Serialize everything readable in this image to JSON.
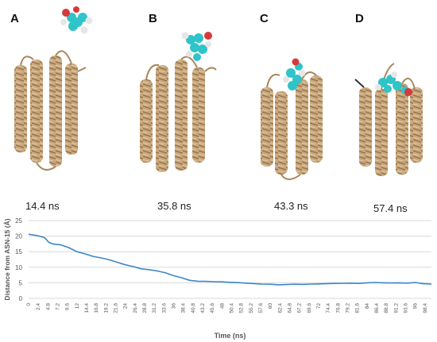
{
  "panels": [
    {
      "letter": "A",
      "time": "14.4 ns"
    },
    {
      "letter": "B",
      "time": "35.8 ns"
    },
    {
      "letter": "C",
      "time": "43.3 ns"
    },
    {
      "letter": "D",
      "time": "57.4 ns"
    }
  ],
  "colors": {
    "helix": "#c9a77c",
    "helix_dark": "#a9865c",
    "ligand_carbon": "#2ec4c9",
    "ligand_oxygen": "#d63a3a",
    "ligand_hydrogen": "#e6e6e6",
    "line": "#3b86c8",
    "grid": "#d9d9d9"
  },
  "chart_data": {
    "type": "line",
    "xlabel": "Time (ns)",
    "ylabel": "Distance from ASN-15 (Å)",
    "ylim": [
      0,
      25
    ],
    "xlim": [
      0,
      100
    ],
    "yticks": [
      "0",
      "5",
      "10",
      "15",
      "20",
      "25"
    ],
    "xticks": [
      "0",
      "2.4",
      "4.8",
      "7.2",
      "9.6",
      "12",
      "14.4",
      "16.8",
      "19.2",
      "21.6",
      "24",
      "26.4",
      "28.8",
      "31.2",
      "33.6",
      "36",
      "38.4",
      "40.8",
      "43.2",
      "45.6",
      "48",
      "50.4",
      "52.8",
      "55.2",
      "57.6",
      "60",
      "62.4",
      "64.8",
      "67.2",
      "69.6",
      "72",
      "74.4",
      "76.8",
      "79.2",
      "81.6",
      "84",
      "86.4",
      "88.8",
      "91.2",
      "93.6",
      "96",
      "98.4"
    ],
    "grid": "horizontal",
    "series": [
      {
        "x": [
          0,
          1,
          2,
          3,
          4,
          5,
          6,
          8,
          10,
          12,
          14,
          16,
          18,
          20,
          22,
          24,
          26,
          28,
          30,
          32,
          34,
          36,
          38,
          40,
          42,
          44,
          46,
          48,
          50,
          52,
          54,
          56,
          58,
          60,
          62,
          64,
          66,
          68,
          70,
          72,
          74,
          76,
          78,
          80,
          82,
          84,
          86,
          88,
          90,
          92,
          94,
          96,
          98,
          100
        ],
        "y": [
          20.6,
          20.4,
          20.2,
          19.9,
          19.5,
          18.0,
          17.5,
          17.2,
          16.3,
          15.0,
          14.3,
          13.5,
          13.0,
          12.4,
          11.6,
          10.8,
          10.2,
          9.5,
          9.2,
          8.8,
          8.2,
          7.3,
          6.6,
          5.8,
          5.5,
          5.45,
          5.35,
          5.3,
          5.15,
          5.05,
          4.9,
          4.75,
          4.6,
          4.55,
          4.35,
          4.45,
          4.55,
          4.5,
          4.6,
          4.65,
          4.75,
          4.8,
          4.85,
          4.9,
          4.8,
          5.0,
          5.1,
          5.0,
          4.95,
          5.0,
          4.9,
          5.1,
          4.7,
          4.6
        ]
      }
    ]
  }
}
